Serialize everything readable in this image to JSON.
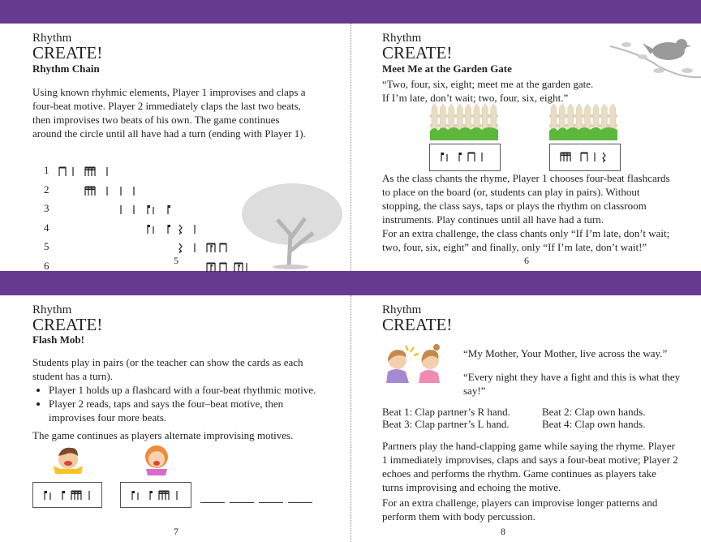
{
  "colors": {
    "band": "#663a8f"
  },
  "page5": {
    "kicker": "Rhythm",
    "title": "CREATE!",
    "subtitle": "Rhythm Chain",
    "body": "Using known rhyhmic elements, Player 1 improvises and claps a four-beat motive. Player 2 immediately claps the last two beats, then improvises two beats of his own. The game continues around the circle until all have had a turn (ending with Player 1).",
    "rows": [
      {
        "label": "1",
        "notes": [
          [
            "ee",
            0
          ],
          [
            "q",
            1
          ],
          [
            "ssss",
            2
          ],
          [
            "q",
            3
          ]
        ]
      },
      {
        "label": "2",
        "notes": [
          [
            "ssss",
            2
          ],
          [
            "q",
            3
          ],
          [
            "q",
            4
          ],
          [
            "q",
            5
          ]
        ]
      },
      {
        "label": "3",
        "notes": [
          [
            "q",
            4
          ],
          [
            "q",
            5
          ],
          [
            "fq",
            6
          ],
          [
            "f",
            7
          ]
        ]
      },
      {
        "label": "4",
        "notes": [
          [
            "fq",
            6
          ],
          [
            "f",
            7
          ],
          [
            "r",
            8
          ],
          [
            "q",
            9
          ]
        ]
      },
      {
        "label": "5",
        "notes": [
          [
            "r",
            8
          ],
          [
            "q",
            9
          ],
          [
            "sse",
            10
          ],
          [
            "ee",
            11
          ]
        ]
      },
      {
        "label": "6",
        "notes": [
          [
            "sse",
            10
          ],
          [
            "ee",
            11
          ],
          [
            "sse",
            12
          ],
          [
            "q",
            13
          ]
        ]
      }
    ],
    "page_number": "5"
  },
  "page6": {
    "kicker": "Rhythm",
    "title": "CREATE!",
    "subtitle": "Meet Me at the Garden Gate",
    "rhyme_line1": "“Two, four, six, eight; meet me at the garden gate.",
    "rhyme_line2": "If I’m late, don’t wait; two, four, six, eight.”",
    "cards": [
      [
        "fq",
        "f",
        "ee",
        "q"
      ],
      [
        "ssss",
        "ee",
        "q",
        "r"
      ]
    ],
    "body1": "As the class chants the rhyme, Player 1 chooses four-beat flashcards to place on the board (or, students can play in pairs). Without stopping, the class says, taps or plays the rhythm on classroom instruments. Play continues until all have had a turn.",
    "body2": "For an extra challenge, the class chants only “If I’m late, don’t wait; two, four, six, eight” and finally, only “If I’m late, don’t wait!”",
    "page_number": "6"
  },
  "page7": {
    "kicker": "Rhythm",
    "title": "CREATE!",
    "subtitle": "Flash Mob!",
    "intro": "Students play in pairs (or the teacher can show the cards as each student has a turn).",
    "bullets": [
      "Player 1 holds up a flashcard with a four-beat rhythmic motive.",
      "Player 2 reads, taps and says the four–beat motive, then improvises four more beats."
    ],
    "outro": "The game continues as players alternate improvising motives.",
    "cards": [
      [
        "fq",
        "f",
        "ssss",
        "q"
      ],
      [
        "fq",
        "f",
        "ssss",
        "q"
      ]
    ],
    "page_number": "7"
  },
  "page8": {
    "kicker": "Rhythm",
    "title": "CREATE!",
    "quote1": "“My Mother, Your Mother, live across the way.”",
    "quote2": "“Every night they have a fight and this is what they say!”",
    "beats": [
      "Beat 1: Clap partner’s R hand.",
      "Beat 2: Clap own hands.",
      "Beat 3: Clap partner’s L hand.",
      "Beat 4: Clap own hands."
    ],
    "body1": "Partners play the hand-clapping game while saying the rhyme. Player 1 immediately improvises, claps and says a four-beat motive; Player 2 echoes and performs the rhythm. Game continues as players take turns improvising and echoing the motive.",
    "body2": "For an extra challenge, players can improvise longer patterns and perform them with body percussion.",
    "page_number": "8"
  }
}
